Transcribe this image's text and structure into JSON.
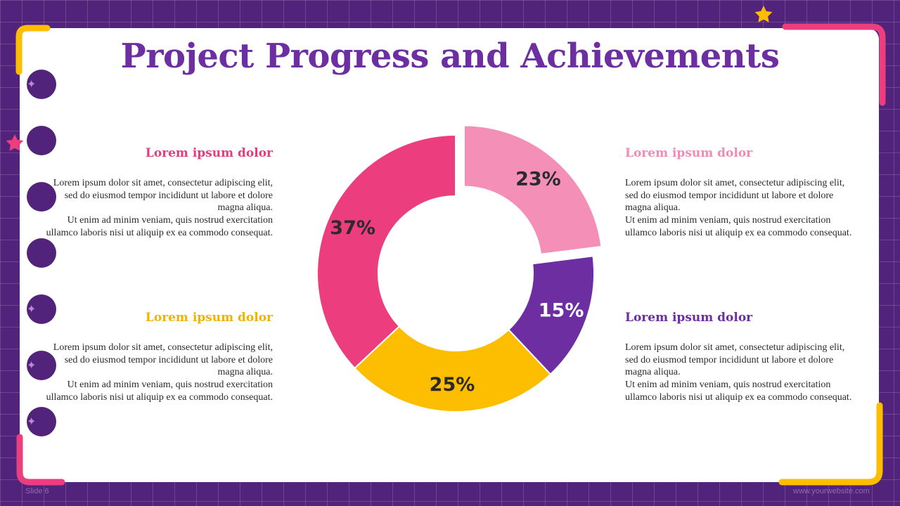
{
  "slide": {
    "title": "Project Progress and Achievements",
    "footer_left": "Slide 6",
    "footer_right": "www.yourwebsite.com"
  },
  "blocks": [
    {
      "heading": "Lorem ipsum dolor",
      "color": "#e23d7e",
      "text": "Lorem ipsum dolor sit amet, consectetur adipiscing elit, sed do eiusmod tempor incididunt ut labore et dolore magna aliqua.\nUt enim ad minim veniam, quis nostrud exercitation ullamco laboris nisi ut aliquip ex ea commodo consequat."
    },
    {
      "heading": "Lorem ipsum dolor",
      "color": "#f0b400",
      "text": "Lorem ipsum dolor sit amet, consectetur adipiscing elit, sed do eiusmod tempor incididunt ut labore et dolore magna aliqua.\nUt enim ad minim veniam, quis nostrud exercitation ullamco laboris nisi ut aliquip ex ea commodo consequat."
    },
    {
      "heading": "Lorem ipsum dolor",
      "color": "#f08bb4",
      "text": "Lorem ipsum dolor sit amet, consectetur adipiscing elit, sed do eiusmod tempor incididunt ut labore et dolore magna aliqua.\nUt enim ad minim veniam, quis nostrud exercitation ullamco laboris nisi ut aliquip ex ea commodo consequat."
    },
    {
      "heading": "Lorem ipsum dolor",
      "color": "#6c2ea0",
      "text": "Lorem ipsum dolor sit amet, consectetur adipiscing elit, sed do eiusmod tempor incididunt ut labore et dolore magna aliqua.\nUt enim ad minim veniam, quis nostrud exercitation ullamco laboris nisi ut aliquip ex ea commodo consequat."
    }
  ],
  "chart_data": {
    "type": "pie",
    "style": "donut with top-right slice exploded",
    "values": [
      23,
      15,
      25,
      37
    ],
    "labels": [
      "23%",
      "15%",
      "25%",
      "37%"
    ],
    "colors": [
      "#f48fb7",
      "#6c2ea0",
      "#fdbd00",
      "#ec3d7e"
    ],
    "label_colors": [
      "#2b2b2b",
      "#ffffff",
      "#2b2b2b",
      "#2b2b2b"
    ],
    "legend": "none"
  },
  "colors": {
    "background": "#52237a",
    "card": "#ffffff",
    "accent_pink": "#ec3d7e",
    "accent_yellow": "#fdbd00"
  }
}
